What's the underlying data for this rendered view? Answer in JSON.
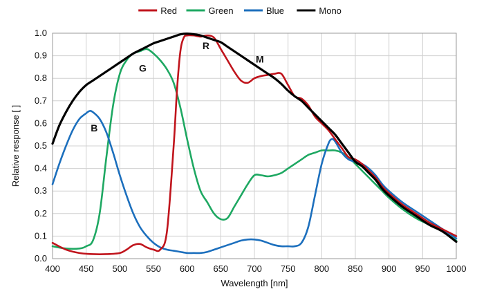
{
  "chart_data": {
    "type": "line",
    "title": "",
    "xlabel": "Wavelength [nm]",
    "ylabel": "Relative response [ ]",
    "xlim": [
      400,
      1000
    ],
    "ylim": [
      0,
      1
    ],
    "x_ticks": [
      400,
      450,
      500,
      550,
      600,
      650,
      700,
      750,
      800,
      850,
      900,
      950,
      1000
    ],
    "y_ticks": [
      0,
      0.1,
      0.2,
      0.3,
      0.4,
      0.5,
      0.6,
      0.7,
      0.8,
      0.9,
      1
    ],
    "grid": true,
    "legend_position": "top",
    "series": [
      {
        "name": "Red",
        "color": "#c0141c",
        "x": [
          400,
          420,
          440,
          460,
          480,
          500,
          510,
          520,
          530,
          540,
          550,
          560,
          570,
          580,
          585,
          590,
          595,
          600,
          610,
          620,
          630,
          640,
          650,
          660,
          670,
          680,
          690,
          700,
          710,
          720,
          730,
          740,
          750,
          760,
          770,
          780,
          790,
          800,
          810,
          820,
          830,
          840,
          850,
          860,
          870,
          880,
          890,
          900,
          920,
          940,
          960,
          980,
          1000
        ],
        "y": [
          0.07,
          0.04,
          0.025,
          0.02,
          0.02,
          0.025,
          0.04,
          0.06,
          0.065,
          0.05,
          0.04,
          0.04,
          0.12,
          0.5,
          0.75,
          0.92,
          0.98,
          0.99,
          0.99,
          0.985,
          0.99,
          0.98,
          0.93,
          0.88,
          0.83,
          0.79,
          0.78,
          0.8,
          0.81,
          0.815,
          0.82,
          0.82,
          0.77,
          0.72,
          0.71,
          0.68,
          0.63,
          0.6,
          0.57,
          0.53,
          0.49,
          0.45,
          0.44,
          0.42,
          0.39,
          0.36,
          0.32,
          0.29,
          0.24,
          0.2,
          0.16,
          0.13,
          0.1
        ]
      },
      {
        "name": "Green",
        "color": "#1ea862",
        "x": [
          400,
          420,
          440,
          450,
          460,
          470,
          480,
          490,
          500,
          510,
          520,
          530,
          540,
          550,
          560,
          570,
          580,
          590,
          600,
          610,
          620,
          630,
          640,
          650,
          660,
          670,
          680,
          690,
          700,
          710,
          720,
          730,
          740,
          750,
          760,
          770,
          780,
          790,
          800,
          810,
          820,
          830,
          840,
          850,
          860,
          870,
          880,
          890,
          900,
          920,
          940,
          960,
          980,
          1000
        ],
        "y": [
          0.055,
          0.045,
          0.045,
          0.055,
          0.08,
          0.2,
          0.45,
          0.68,
          0.82,
          0.88,
          0.91,
          0.92,
          0.93,
          0.91,
          0.88,
          0.84,
          0.78,
          0.67,
          0.53,
          0.4,
          0.3,
          0.25,
          0.2,
          0.175,
          0.18,
          0.23,
          0.28,
          0.33,
          0.37,
          0.37,
          0.365,
          0.37,
          0.38,
          0.4,
          0.42,
          0.44,
          0.46,
          0.47,
          0.48,
          0.48,
          0.48,
          0.47,
          0.45,
          0.42,
          0.39,
          0.36,
          0.33,
          0.3,
          0.27,
          0.22,
          0.18,
          0.15,
          0.12,
          0.08
        ]
      },
      {
        "name": "Blue",
        "color": "#1c6fbd",
        "x": [
          400,
          410,
          420,
          430,
          440,
          450,
          455,
          460,
          470,
          480,
          490,
          500,
          510,
          520,
          530,
          540,
          550,
          560,
          570,
          580,
          590,
          600,
          610,
          620,
          630,
          640,
          650,
          660,
          670,
          680,
          690,
          700,
          710,
          720,
          730,
          740,
          750,
          760,
          770,
          780,
          790,
          800,
          810,
          815,
          820,
          830,
          840,
          850,
          860,
          870,
          880,
          890,
          900,
          920,
          940,
          960,
          980,
          1000
        ],
        "y": [
          0.33,
          0.42,
          0.5,
          0.57,
          0.62,
          0.645,
          0.655,
          0.65,
          0.62,
          0.56,
          0.47,
          0.37,
          0.28,
          0.2,
          0.14,
          0.1,
          0.07,
          0.05,
          0.04,
          0.035,
          0.03,
          0.025,
          0.025,
          0.025,
          0.03,
          0.04,
          0.05,
          0.06,
          0.07,
          0.08,
          0.085,
          0.085,
          0.08,
          0.07,
          0.06,
          0.055,
          0.055,
          0.055,
          0.07,
          0.14,
          0.28,
          0.42,
          0.51,
          0.53,
          0.52,
          0.47,
          0.44,
          0.43,
          0.42,
          0.4,
          0.37,
          0.33,
          0.3,
          0.25,
          0.21,
          0.17,
          0.13,
          0.09
        ]
      },
      {
        "name": "Mono",
        "color": "#000000",
        "x": [
          400,
          410,
          420,
          430,
          440,
          450,
          460,
          470,
          480,
          490,
          500,
          510,
          520,
          530,
          540,
          550,
          560,
          570,
          580,
          590,
          600,
          610,
          620,
          630,
          640,
          650,
          660,
          670,
          680,
          690,
          700,
          710,
          720,
          730,
          740,
          750,
          760,
          770,
          780,
          790,
          800,
          810,
          820,
          830,
          840,
          850,
          860,
          870,
          880,
          890,
          900,
          920,
          940,
          960,
          980,
          1000
        ],
        "y": [
          0.51,
          0.59,
          0.65,
          0.7,
          0.74,
          0.77,
          0.79,
          0.81,
          0.83,
          0.85,
          0.87,
          0.89,
          0.91,
          0.925,
          0.94,
          0.955,
          0.965,
          0.975,
          0.985,
          0.995,
          0.998,
          0.995,
          0.99,
          0.98,
          0.97,
          0.96,
          0.94,
          0.92,
          0.9,
          0.88,
          0.86,
          0.84,
          0.82,
          0.8,
          0.775,
          0.745,
          0.72,
          0.7,
          0.67,
          0.64,
          0.61,
          0.58,
          0.55,
          0.51,
          0.47,
          0.43,
          0.41,
          0.38,
          0.35,
          0.31,
          0.28,
          0.23,
          0.19,
          0.15,
          0.12,
          0.075
        ]
      }
    ],
    "annotations": [
      {
        "text": "B",
        "x": 462,
        "y": 0.565
      },
      {
        "text": "G",
        "x": 534,
        "y": 0.83
      },
      {
        "text": "R",
        "x": 628,
        "y": 0.93
      },
      {
        "text": "M",
        "x": 708,
        "y": 0.87
      }
    ]
  }
}
